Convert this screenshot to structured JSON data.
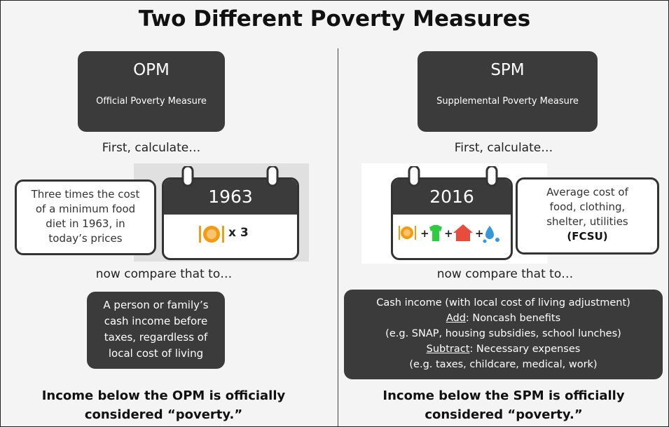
{
  "title": "Two Different Poverty Measures",
  "left": {
    "acronym": "OPM",
    "name": "Official Poverty Measure",
    "step1": "First, calculate…",
    "year": "1963",
    "multiplier": "x 3",
    "description": [
      "Three times the cost",
      "of a minimum food",
      "diet in 1963, in",
      "today’s prices"
    ],
    "step2": "now compare that to…",
    "income": [
      "A person or family’s",
      "cash income before",
      "taxes, regardless of",
      "local cost of living"
    ],
    "conclusion": [
      "Income below the OPM is officially",
      "considered “poverty.”"
    ]
  },
  "right": {
    "acronym": "SPM",
    "name": "Supplemental Poverty Measure",
    "step1": "First, calculate…",
    "year": "2016",
    "description": [
      "Average cost of",
      "food, clothing,",
      "shelter, utilities"
    ],
    "abbreviation": "(FCSU)",
    "step2": "now compare that to…",
    "income": {
      "line1": "Cash income (with local cost of living adjustment)",
      "add_label": "Add",
      "add_text": ": Noncash benefits",
      "add_examples": "(e.g. SNAP, housing subsidies, school lunches)",
      "subtract_label": "Subtract",
      "subtract_text": ": Necessary expenses",
      "subtract_examples": "(e.g. taxes, childcare, medical, work)"
    },
    "conclusion": [
      "Income below the SPM is officially",
      "considered “poverty.”"
    ]
  }
}
